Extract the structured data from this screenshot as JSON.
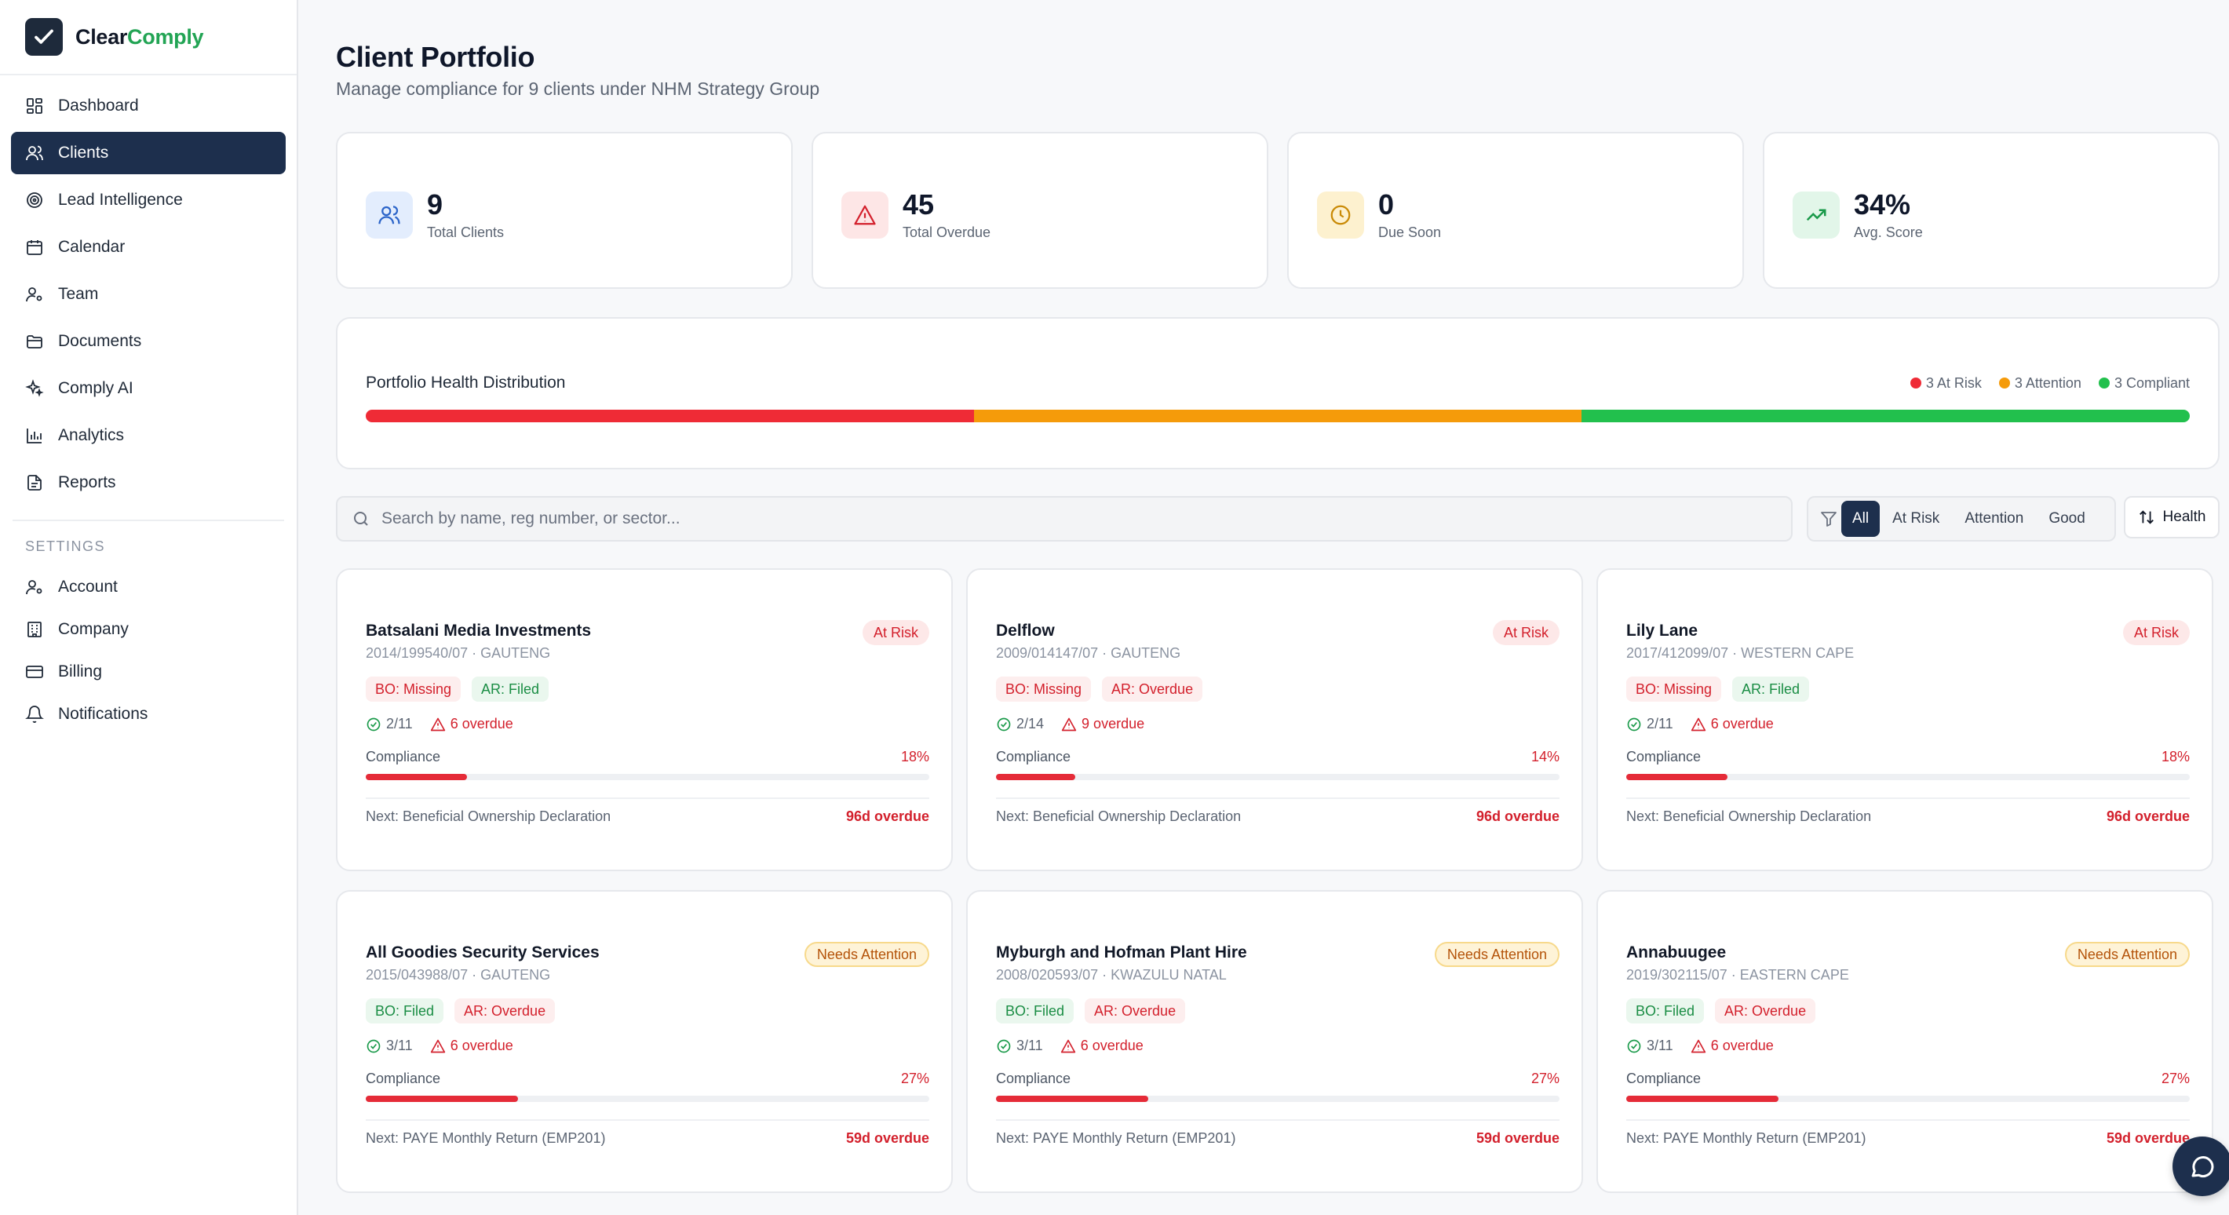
{
  "brand": {
    "part1": "Clear",
    "part2": "Comply"
  },
  "nav": [
    {
      "label": "Dashboard",
      "icon": "grid-icon"
    },
    {
      "label": "Clients",
      "icon": "users-icon",
      "active": true
    },
    {
      "label": "Lead Intelligence",
      "icon": "target-icon"
    },
    {
      "label": "Calendar",
      "icon": "calendar-icon"
    },
    {
      "label": "Team",
      "icon": "user-cog-icon"
    },
    {
      "label": "Documents",
      "icon": "folder-icon"
    },
    {
      "label": "Comply AI",
      "icon": "sparkles-icon"
    },
    {
      "label": "Analytics",
      "icon": "bar-chart-icon"
    },
    {
      "label": "Reports",
      "icon": "file-text-icon"
    }
  ],
  "settings": {
    "heading": "SETTINGS",
    "items": [
      {
        "label": "Account",
        "icon": "user-cog-icon"
      },
      {
        "label": "Company",
        "icon": "building-icon"
      },
      {
        "label": "Billing",
        "icon": "credit-card-icon"
      },
      {
        "label": "Notifications",
        "icon": "bell-icon"
      }
    ]
  },
  "page": {
    "title": "Client Portfolio",
    "subtitle": "Manage compliance for 9 clients under NHM Strategy Group"
  },
  "stats": [
    {
      "value": "9",
      "label": "Total Clients",
      "icon": "users-icon",
      "bg": "#e3edfd",
      "fg": "#2b64c9"
    },
    {
      "value": "45",
      "label": "Total Overdue",
      "icon": "alert-triangle-icon",
      "bg": "#fde6e6",
      "fg": "#d3202c"
    },
    {
      "value": "0",
      "label": "Due Soon",
      "icon": "clock-icon",
      "bg": "#fdf1cf",
      "fg": "#c98a06"
    },
    {
      "value": "34%",
      "label": "Avg. Score",
      "icon": "trending-up-icon",
      "bg": "#e2f6e9",
      "fg": "#1a9a4a"
    }
  ],
  "health": {
    "title": "Portfolio Health Distribution",
    "legend": [
      {
        "label": "3 At Risk",
        "color": "#ef2b36"
      },
      {
        "label": "3 Attention",
        "color": "#f59b0a"
      },
      {
        "label": "3 Compliant",
        "color": "#22c04d"
      }
    ],
    "segments": [
      {
        "fraction": 0.3333,
        "color": "#ef2b36"
      },
      {
        "fraction": 0.3333,
        "color": "#f59b0a"
      },
      {
        "fraction": 0.3334,
        "color": "#22c04d"
      }
    ]
  },
  "search": {
    "placeholder": "Search by name, reg number, or sector..."
  },
  "filters": {
    "options": [
      "All",
      "At Risk",
      "Attention",
      "Good"
    ],
    "active": "All"
  },
  "sort": {
    "label": "Health"
  },
  "clients": [
    {
      "name": "Batsalani Media Investments",
      "reg": "2014/199540/07 · GAUTENG",
      "status": "At Risk",
      "statusType": "risk",
      "bo": "BO: Missing",
      "boType": "red",
      "ar": "AR: Filed",
      "arType": "green",
      "done": "2/11",
      "overdue": "6 overdue",
      "compLabel": "Compliance",
      "compliance": 18,
      "compText": "18%",
      "next": "Next: Beneficial Ownership Declaration",
      "due": "96d overdue"
    },
    {
      "name": "Delflow",
      "reg": "2009/014147/07 · GAUTENG",
      "status": "At Risk",
      "statusType": "risk",
      "bo": "BO: Missing",
      "boType": "red",
      "ar": "AR: Overdue",
      "arType": "red",
      "done": "2/14",
      "overdue": "9 overdue",
      "compLabel": "Compliance",
      "compliance": 14,
      "compText": "14%",
      "next": "Next: Beneficial Ownership Declaration",
      "due": "96d overdue"
    },
    {
      "name": "Lily Lane",
      "reg": "2017/412099/07 · WESTERN CAPE",
      "status": "At Risk",
      "statusType": "risk",
      "bo": "BO: Missing",
      "boType": "red",
      "ar": "AR: Filed",
      "arType": "green",
      "done": "2/11",
      "overdue": "6 overdue",
      "compLabel": "Compliance",
      "compliance": 18,
      "compText": "18%",
      "next": "Next: Beneficial Ownership Declaration",
      "due": "96d overdue"
    },
    {
      "name": "All Goodies Security Services",
      "reg": "2015/043988/07 · GAUTENG",
      "status": "Needs Attention",
      "statusType": "attn",
      "bo": "BO: Filed",
      "boType": "green",
      "ar": "AR: Overdue",
      "arType": "red",
      "done": "3/11",
      "overdue": "6 overdue",
      "compLabel": "Compliance",
      "compliance": 27,
      "compText": "27%",
      "next": "Next: PAYE Monthly Return (EMP201)",
      "due": "59d overdue"
    },
    {
      "name": "Myburgh and Hofman Plant Hire",
      "reg": "2008/020593/07 · KWAZULU NATAL",
      "status": "Needs Attention",
      "statusType": "attn",
      "bo": "BO: Filed",
      "boType": "green",
      "ar": "AR: Overdue",
      "arType": "red",
      "done": "3/11",
      "overdue": "6 overdue",
      "compLabel": "Compliance",
      "compliance": 27,
      "compText": "27%",
      "next": "Next: PAYE Monthly Return (EMP201)",
      "due": "59d overdue"
    },
    {
      "name": "Annabuugee",
      "reg": "2019/302115/07 · EASTERN CAPE",
      "status": "Needs Attention",
      "statusType": "attn",
      "bo": "BO: Filed",
      "boType": "green",
      "ar": "AR: Overdue",
      "arType": "red",
      "done": "3/11",
      "overdue": "6 overdue",
      "compLabel": "Compliance",
      "compliance": 27,
      "compText": "27%",
      "next": "Next: PAYE Monthly Return (EMP201)",
      "due": "59d overdue"
    }
  ]
}
